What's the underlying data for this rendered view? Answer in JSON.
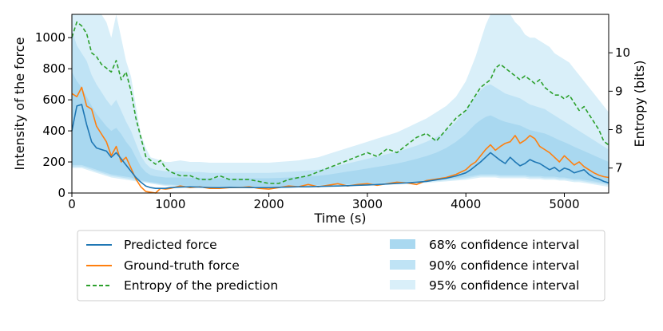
{
  "chart_data": {
    "type": "line",
    "xlabel": "Time (s)",
    "ylabel": "Intensity of the force",
    "y2label": "Entropy (bits)",
    "xlim": [
      0,
      5450
    ],
    "ylim": [
      0,
      1150
    ],
    "y2lim": [
      6.35,
      11.0
    ],
    "x_ticks": [
      0,
      1000,
      2000,
      3000,
      4000,
      5000
    ],
    "y_ticks": [
      0,
      200,
      400,
      600,
      800,
      1000
    ],
    "y2_ticks": [
      7,
      8,
      9,
      10
    ],
    "colors": {
      "predicted": "#1f77b4",
      "ground_truth": "#ff7f0e",
      "entropy": "#2ca02c",
      "ci68": "#a9d8f0",
      "ci90": "#bfe3f5",
      "ci95": "#d9eff9"
    },
    "legend": {
      "placement": "below",
      "predicted": "Predicted force",
      "ground_truth": "Ground-truth force",
      "entropy": "Entropy of the prediction",
      "ci68": "68% confidence interval",
      "ci90": "90% confidence interval",
      "ci95": "95% confidence interval"
    },
    "x": [
      0,
      50,
      100,
      150,
      200,
      250,
      300,
      350,
      400,
      450,
      500,
      550,
      600,
      650,
      700,
      750,
      800,
      850,
      900,
      950,
      1000,
      1100,
      1200,
      1300,
      1400,
      1500,
      1600,
      1700,
      1800,
      1900,
      2000,
      2100,
      2200,
      2300,
      2400,
      2500,
      2600,
      2700,
      2800,
      2900,
      3000,
      3100,
      3200,
      3300,
      3400,
      3500,
      3600,
      3700,
      3800,
      3900,
      4000,
      4050,
      4100,
      4150,
      4200,
      4250,
      4300,
      4350,
      4400,
      4450,
      4500,
      4550,
      4600,
      4650,
      4700,
      4750,
      4800,
      4850,
      4900,
      4950,
      5000,
      5050,
      5100,
      5150,
      5200,
      5250,
      5300,
      5350,
      5400,
      5450
    ],
    "series": [
      {
        "name": "Predicted force",
        "axis": "left",
        "values": [
          400,
          560,
          570,
          440,
          330,
          290,
          280,
          270,
          230,
          260,
          220,
          180,
          140,
          100,
          70,
          45,
          35,
          30,
          30,
          30,
          35,
          38,
          40,
          38,
          36,
          35,
          37,
          36,
          35,
          35,
          35,
          37,
          38,
          40,
          40,
          42,
          44,
          45,
          47,
          50,
          52,
          55,
          58,
          62,
          65,
          70,
          75,
          85,
          95,
          110,
          130,
          150,
          175,
          200,
          230,
          260,
          235,
          210,
          190,
          230,
          200,
          175,
          190,
          215,
          200,
          190,
          170,
          150,
          165,
          140,
          160,
          150,
          130,
          140,
          150,
          120,
          100,
          90,
          75,
          65
        ]
      },
      {
        "name": "Ground-truth force",
        "axis": "left",
        "values": [
          640,
          620,
          680,
          560,
          540,
          430,
          380,
          330,
          240,
          300,
          200,
          230,
          160,
          90,
          40,
          10,
          5,
          0,
          30,
          25,
          30,
          45,
          35,
          40,
          30,
          30,
          35,
          35,
          40,
          30,
          25,
          35,
          45,
          40,
          55,
          40,
          50,
          60,
          45,
          55,
          60,
          50,
          60,
          70,
          65,
          55,
          80,
          90,
          100,
          120,
          150,
          180,
          200,
          240,
          280,
          310,
          275,
          300,
          320,
          330,
          370,
          320,
          340,
          370,
          350,
          300,
          280,
          260,
          230,
          200,
          240,
          210,
          180,
          200,
          170,
          150,
          130,
          115,
          105,
          100
        ]
      },
      {
        "name": "Entropy of the prediction",
        "axis": "right",
        "values": [
          10.4,
          10.8,
          10.7,
          10.5,
          10.0,
          9.9,
          9.7,
          9.6,
          9.5,
          9.8,
          9.3,
          9.5,
          9.0,
          8.3,
          7.8,
          7.3,
          7.2,
          7.1,
          7.2,
          7.0,
          6.9,
          6.8,
          6.8,
          6.7,
          6.7,
          6.8,
          6.7,
          6.7,
          6.7,
          6.65,
          6.6,
          6.6,
          6.7,
          6.75,
          6.8,
          6.9,
          7.0,
          7.1,
          7.2,
          7.3,
          7.4,
          7.3,
          7.5,
          7.4,
          7.6,
          7.8,
          7.9,
          7.7,
          8.0,
          8.3,
          8.5,
          8.7,
          8.9,
          9.1,
          9.2,
          9.3,
          9.6,
          9.7,
          9.6,
          9.5,
          9.4,
          9.3,
          9.4,
          9.3,
          9.2,
          9.3,
          9.1,
          9.0,
          8.9,
          8.9,
          8.8,
          8.9,
          8.7,
          8.5,
          8.6,
          8.4,
          8.2,
          8.0,
          7.7,
          7.6
        ]
      }
    ],
    "bands": [
      {
        "name": "95% confidence interval",
        "lower": [
          160,
          160,
          160,
          150,
          140,
          130,
          120,
          110,
          100,
          95,
          90,
          85,
          80,
          75,
          70,
          65,
          60,
          55,
          50,
          45,
          45,
          40,
          40,
          38,
          36,
          36,
          36,
          36,
          36,
          36,
          35,
          36,
          38,
          40,
          40,
          42,
          44,
          45,
          47,
          48,
          50,
          52,
          55,
          58,
          60,
          62,
          65,
          70,
          75,
          80,
          85,
          90,
          95,
          100,
          100,
          100,
          100,
          95,
          95,
          95,
          95,
          95,
          95,
          90,
          90,
          90,
          85,
          85,
          85,
          80,
          80,
          75,
          70,
          70,
          65,
          60,
          55,
          50,
          45,
          40
        ],
        "upper": [
          1150,
          1150,
          1150,
          1150,
          1150,
          1150,
          1150,
          1100,
          1000,
          1150,
          1000,
          850,
          750,
          560,
          380,
          290,
          230,
          220,
          210,
          200,
          200,
          210,
          200,
          200,
          195,
          195,
          195,
          195,
          195,
          195,
          195,
          200,
          205,
          210,
          220,
          230,
          250,
          270,
          290,
          310,
          330,
          350,
          370,
          390,
          420,
          450,
          480,
          520,
          560,
          620,
          720,
          800,
          880,
          980,
          1080,
          1150,
          1150,
          1150,
          1150,
          1150,
          1100,
          1070,
          1020,
          1000,
          1000,
          980,
          960,
          940,
          900,
          880,
          860,
          840,
          800,
          760,
          720,
          680,
          640,
          600,
          560,
          520
        ]
      },
      {
        "name": "90% confidence interval",
        "lower": [
          170,
          170,
          170,
          160,
          150,
          140,
          130,
          120,
          110,
          105,
          100,
          95,
          90,
          80,
          75,
          70,
          65,
          60,
          55,
          50,
          50,
          45,
          45,
          42,
          40,
          40,
          40,
          40,
          40,
          40,
          40,
          40,
          42,
          44,
          45,
          47,
          49,
          50,
          52,
          54,
          56,
          58,
          60,
          63,
          66,
          69,
          72,
          77,
          82,
          88,
          95,
          100,
          105,
          110,
          110,
          110,
          110,
          105,
          105,
          105,
          105,
          105,
          105,
          100,
          100,
          100,
          95,
          95,
          95,
          90,
          90,
          85,
          80,
          80,
          75,
          70,
          65,
          60,
          55,
          50
        ],
        "upper": [
          1050,
          950,
          900,
          850,
          760,
          700,
          650,
          600,
          560,
          600,
          530,
          460,
          400,
          320,
          240,
          190,
          160,
          150,
          145,
          140,
          140,
          140,
          135,
          135,
          130,
          130,
          130,
          130,
          130,
          130,
          130,
          133,
          136,
          140,
          145,
          150,
          160,
          175,
          190,
          205,
          220,
          235,
          250,
          265,
          285,
          305,
          330,
          360,
          400,
          460,
          530,
          580,
          620,
          660,
          690,
          700,
          680,
          660,
          640,
          630,
          620,
          610,
          590,
          570,
          560,
          550,
          540,
          520,
          500,
          480,
          460,
          440,
          420,
          400,
          380,
          360,
          340,
          320,
          300,
          280
        ]
      },
      {
        "name": "68% confidence interval",
        "lower": [
          180,
          180,
          180,
          170,
          160,
          150,
          140,
          130,
          120,
          115,
          110,
          105,
          100,
          90,
          82,
          76,
          70,
          66,
          60,
          56,
          55,
          50,
          48,
          46,
          45,
          44,
          44,
          44,
          44,
          44,
          44,
          45,
          46,
          48,
          50,
          52,
          54,
          55,
          57,
          60,
          62,
          64,
          67,
          70,
          73,
          76,
          80,
          85,
          90,
          97,
          105,
          110,
          115,
          120,
          120,
          120,
          120,
          115,
          115,
          115,
          115,
          115,
          115,
          110,
          110,
          110,
          105,
          105,
          105,
          100,
          100,
          95,
          90,
          90,
          85,
          80,
          75,
          70,
          65,
          60
        ],
        "upper": [
          780,
          720,
          680,
          620,
          560,
          510,
          470,
          430,
          400,
          420,
          380,
          330,
          290,
          230,
          170,
          135,
          115,
          108,
          104,
          100,
          100,
          100,
          98,
          98,
          95,
          95,
          95,
          95,
          95,
          95,
          95,
          97,
          100,
          103,
          107,
          111,
          118,
          128,
          138,
          148,
          158,
          168,
          178,
          190,
          204,
          220,
          238,
          260,
          290,
          330,
          380,
          415,
          445,
          470,
          490,
          500,
          485,
          470,
          458,
          450,
          442,
          435,
          420,
          405,
          398,
          390,
          383,
          370,
          355,
          340,
          327,
          313,
          298,
          284,
          270,
          256,
          242,
          228,
          214,
          200
        ]
      }
    ]
  }
}
